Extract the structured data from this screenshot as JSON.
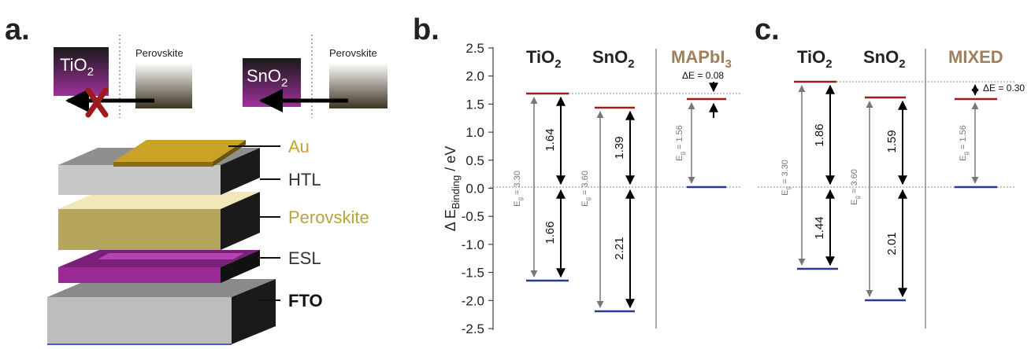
{
  "panels": {
    "a": {
      "label": "a.",
      "tio2": "TiO",
      "tio2_sub": "2",
      "sno2": "SnO",
      "sno2_sub": "2",
      "perovskite_left": "Perovskite",
      "perovskite_right": "Perovskite",
      "layers": [
        {
          "name": "Au",
          "color": "#c9a227"
        },
        {
          "name": "HTL",
          "color": "#333333"
        },
        {
          "name": "Perovskite",
          "color": "#b5a53f"
        },
        {
          "name": "ESL",
          "color": "#333333"
        },
        {
          "name": "FTO",
          "color": "#111111"
        }
      ]
    },
    "b": {
      "label": "b.",
      "col1": "TiO",
      "col1_sub": "2",
      "col2": "SnO",
      "col2_sub": "2",
      "col3": "MAPbI",
      "col3_sub": "3",
      "delta_e": "ΔE = 0.08",
      "gaps": [
        "1.64",
        "1.66",
        "1.39",
        "2.21"
      ],
      "eg_prefix": "E",
      "eg_sub": "g",
      "eg_values": [
        "= 3.30",
        "= 3.60",
        "= 1.56"
      ]
    },
    "c": {
      "label": "c.",
      "col1": "TiO",
      "col1_sub": "2",
      "col2": "SnO",
      "col2_sub": "2",
      "col3": "MIXED",
      "delta_e": "ΔE = 0.30",
      "gaps": [
        "1.86",
        "1.44",
        "1.59",
        "2.01"
      ],
      "eg_values": [
        "= 3.30",
        "= 3.60",
        "= 1.56"
      ]
    }
  },
  "axis": {
    "label_prefix": "Δ E",
    "label_sub": "Binding",
    "label_suffix": " / eV",
    "ticks": [
      "2.5",
      "2.0",
      "1.5",
      "1.0",
      "0.5",
      "0.0",
      "-0.5",
      "-1.0",
      "-1.5",
      "-2.0",
      "-2.5"
    ]
  },
  "chart_data": [
    {
      "type": "energy-level-diagram",
      "ylabel": "Δ E Binding / eV",
      "ylim": [
        -2.5,
        2.5
      ],
      "columns": [
        {
          "name": "TiO2",
          "top": 1.64,
          "bottom": -1.66,
          "Eg": 3.3
        },
        {
          "name": "SnO2",
          "top": 1.39,
          "bottom": -2.21,
          "Eg": 3.6
        },
        {
          "name": "MAPbI3",
          "top": 1.56,
          "bottom": 0.0,
          "Eg": 1.56
        }
      ],
      "delta_E": 0.08
    },
    {
      "type": "energy-level-diagram",
      "ylim": [
        -2.5,
        2.5
      ],
      "columns": [
        {
          "name": "TiO2",
          "top": 1.86,
          "bottom": -1.44,
          "Eg": 3.3
        },
        {
          "name": "SnO2",
          "top": 1.59,
          "bottom": -2.01,
          "Eg": 3.6
        },
        {
          "name": "MIXED",
          "top": 1.56,
          "bottom": 0.0,
          "Eg": 1.56
        }
      ],
      "delta_E": 0.3
    }
  ],
  "colors": {
    "red_level": "#9b1c1c",
    "blue_level": "#2b3a8f",
    "brown_title": "#a0805a",
    "purple": "#8a1f8a",
    "gold": "#c9a227",
    "cross": "#9b1c1c"
  }
}
